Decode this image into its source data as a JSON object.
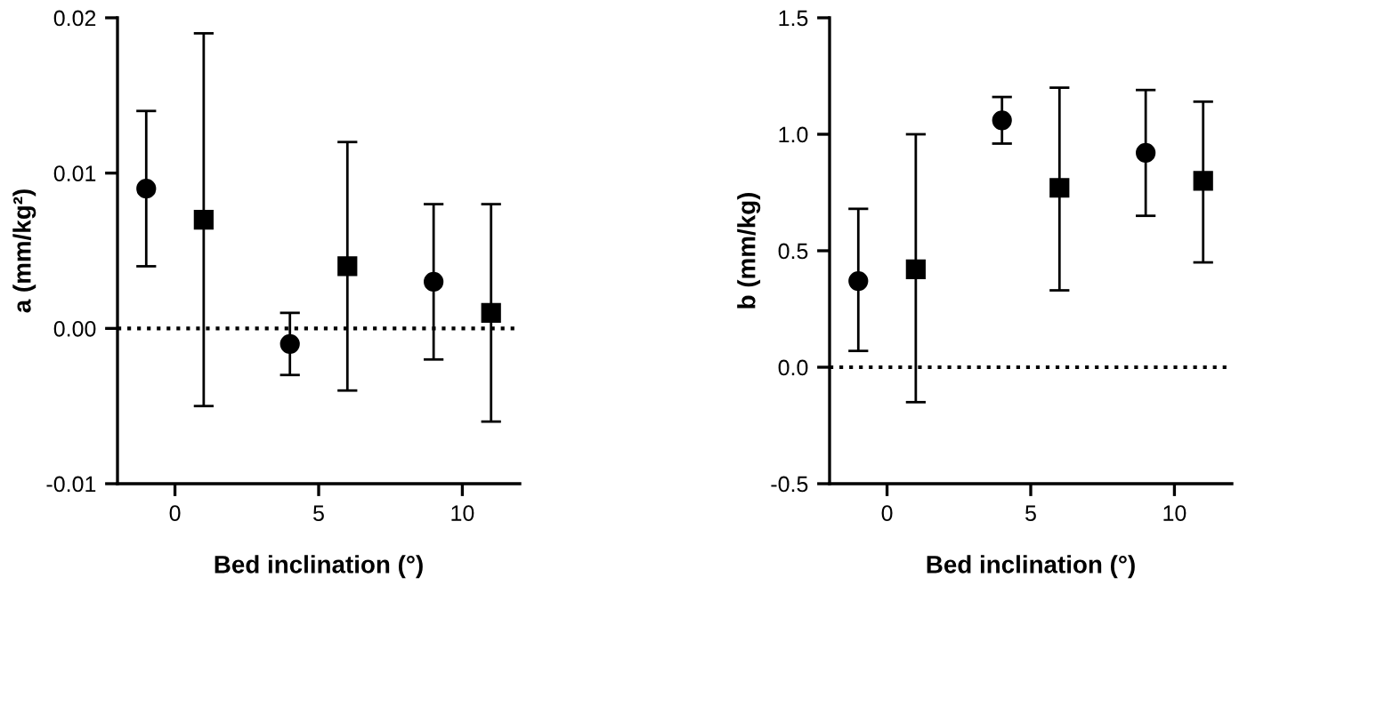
{
  "chart_data": [
    {
      "type": "scatter",
      "xlabel": "Bed inclination (°)",
      "ylabel": "a (mm/kg²)",
      "xlim": [
        -2,
        12
      ],
      "xticks": [
        0,
        5,
        10
      ],
      "ylim": [
        -0.01,
        0.02
      ],
      "yticks": [
        {
          "value": -0.01,
          "label": "-0.01"
        },
        {
          "value": 0,
          "label": "0.00"
        },
        {
          "value": 0.01,
          "label": "0.01"
        },
        {
          "value": 0.02,
          "label": "0.02"
        }
      ],
      "grid": false,
      "legend": false,
      "ref_lines": [
        {
          "axis": "y",
          "value": 0,
          "line_style": "dotted",
          "color": "#000000"
        }
      ],
      "series": [
        {
          "color": "#000000",
          "marker": "circle",
          "x": [
            -1,
            4,
            9
          ],
          "values": [
            0.009,
            -0.001,
            0.003
          ],
          "errors": [
            [
              0.004,
              0.014
            ],
            [
              -0.003,
              0.001
            ],
            [
              -0.002,
              0.008
            ]
          ]
        },
        {
          "color": "#000000",
          "marker": "square",
          "x": [
            1,
            6,
            11
          ],
          "values": [
            0.007,
            0.004,
            0.001
          ],
          "errors": [
            [
              -0.005,
              0.019
            ],
            [
              -0.004,
              0.012
            ],
            [
              -0.006,
              0.008
            ]
          ]
        }
      ]
    },
    {
      "type": "scatter",
      "xlabel": "Bed inclination (°)",
      "ylabel": "b (mm/kg)",
      "xlim": [
        -2,
        12
      ],
      "xticks": [
        0,
        5,
        10
      ],
      "ylim": [
        -0.5,
        1.5
      ],
      "yticks": [
        {
          "value": -0.5,
          "label": "-0.5"
        },
        {
          "value": 0,
          "label": "0.0"
        },
        {
          "value": 0.5,
          "label": "0.5"
        },
        {
          "value": 1,
          "label": "1.0"
        },
        {
          "value": 1.5,
          "label": "1.5"
        }
      ],
      "grid": false,
      "legend": false,
      "ref_lines": [
        {
          "axis": "y",
          "value": 0,
          "line_style": "dotted",
          "color": "#000000"
        }
      ],
      "series": [
        {
          "color": "#000000",
          "marker": "circle",
          "x": [
            -1,
            4,
            9
          ],
          "values": [
            0.37,
            1.06,
            0.92
          ],
          "errors": [
            [
              0.07,
              0.68
            ],
            [
              0.96,
              1.16
            ],
            [
              0.65,
              1.19
            ]
          ]
        },
        {
          "color": "#000000",
          "marker": "square",
          "x": [
            1,
            6,
            11
          ],
          "values": [
            0.42,
            0.77,
            0.8
          ],
          "errors": [
            [
              -0.15,
              1.0
            ],
            [
              0.33,
              1.2
            ],
            [
              0.45,
              1.14
            ]
          ]
        }
      ]
    }
  ]
}
